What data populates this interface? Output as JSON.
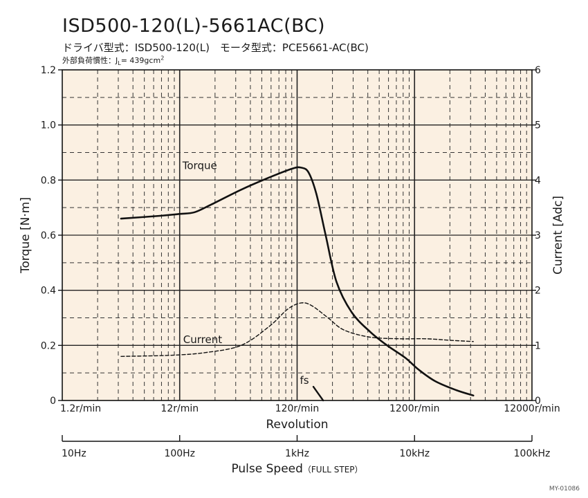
{
  "header": {
    "title": "ISD500-120(L)-5661AC(BC)",
    "subtitle": "ドライバ型式：ISD500-120(L)　モータ型式：PCE5661-AC(BC)",
    "subtitle2": "外部負荷慣性：J",
    "subtitle2_sub": "L",
    "subtitle2_rest": "= 439gcm",
    "subtitle2_sup": "2"
  },
  "footer": {
    "code": "MY-01086"
  },
  "chart_data": {
    "type": "line",
    "x_scale": "log",
    "xlabel": "Revolution",
    "xlim": [
      1.2,
      12000
    ],
    "x_ticks": [
      "1.2r/min",
      "12r/min",
      "120r/min",
      "1200r/min",
      "12000r/min"
    ],
    "ylabel_left": "Torque [N·m]",
    "ylim_left": [
      0,
      1.2
    ],
    "y_ticks_left": [
      "0",
      "0.2",
      "0.4",
      "0.6",
      "0.8",
      "1.0",
      "1.2"
    ],
    "ylabel_right": "Current [Adc]",
    "ylim_right": [
      0,
      6
    ],
    "y_ticks_right": [
      "0",
      "1",
      "2",
      "3",
      "4",
      "5",
      "6"
    ],
    "secondary_axis": {
      "xlabel": "Pulse Speed",
      "xlabel_note": "（FULL STEP）",
      "ticks": [
        "10Hz",
        "100Hz",
        "1kHz",
        "10kHz",
        "100kHz"
      ]
    },
    "grid": true,
    "colors": {
      "plot_background": "#fbf0e2",
      "line": "#111111"
    },
    "series": [
      {
        "name": "Torque",
        "axis": "left",
        "style": "solid",
        "x": [
          3.8,
          8,
          12,
          16,
          22,
          40,
          70,
          110,
          130,
          150,
          175,
          210,
          260,
          350,
          500,
          700,
          1000,
          1300,
          1800,
          2700,
          3800
        ],
        "y": [
          0.66,
          0.67,
          0.677,
          0.683,
          0.71,
          0.765,
          0.81,
          0.842,
          0.845,
          0.828,
          0.75,
          0.6,
          0.43,
          0.32,
          0.25,
          0.2,
          0.155,
          0.112,
          0.07,
          0.038,
          0.018
        ]
      },
      {
        "name": "Current",
        "axis": "right",
        "style": "dashed",
        "x": [
          3.8,
          10,
          20,
          40,
          70,
          100,
          130,
          160,
          220,
          300,
          500,
          900,
          1500,
          2500,
          3800
        ],
        "y": [
          0.8,
          0.82,
          0.87,
          1.0,
          1.35,
          1.66,
          1.77,
          1.72,
          1.5,
          1.28,
          1.15,
          1.12,
          1.12,
          1.09,
          1.07
        ]
      },
      {
        "name": "fs",
        "axis": "left",
        "style": "solid",
        "x": [
          165,
          200
        ],
        "y": [
          0.05,
          0
        ]
      }
    ]
  }
}
